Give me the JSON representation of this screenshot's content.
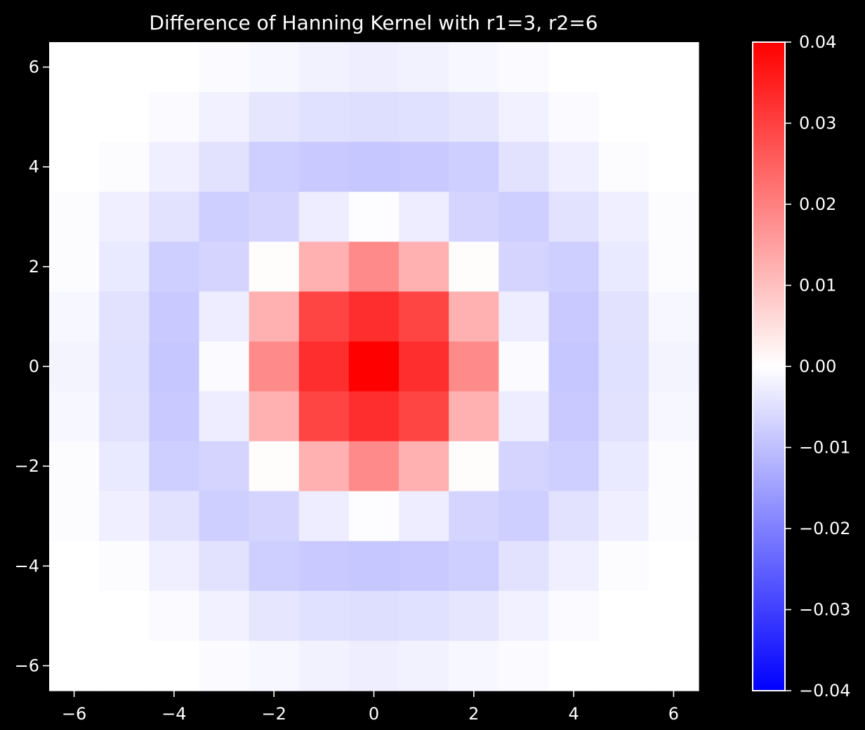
{
  "chart_data": {
    "type": "heatmap",
    "title": "Difference of Hanning Kernel with r1=3, r2=6",
    "x": [
      -6,
      -5,
      -4,
      -3,
      -2,
      -1,
      0,
      1,
      2,
      3,
      4,
      5,
      6
    ],
    "y": [
      6,
      5,
      4,
      3,
      2,
      1,
      0,
      -1,
      -2,
      -3,
      -4,
      -5,
      -6
    ],
    "values": [
      [
        0,
        0,
        0,
        -0.0007,
        -0.0012,
        -0.002,
        -0.0027,
        -0.002,
        -0.0012,
        -0.0007,
        0,
        0,
        0
      ],
      [
        0,
        0,
        -0.0007,
        -0.0022,
        -0.004,
        -0.0048,
        -0.0052,
        -0.0048,
        -0.004,
        -0.0022,
        -0.0007,
        0,
        0
      ],
      [
        0,
        -0.0005,
        -0.0025,
        -0.0045,
        -0.0075,
        -0.0085,
        -0.0088,
        -0.0085,
        -0.0075,
        -0.0045,
        -0.0025,
        -0.0005,
        0
      ],
      [
        -0.0004,
        -0.0025,
        -0.0045,
        -0.0075,
        -0.0068,
        -0.0028,
        -0.0003,
        -0.0028,
        -0.0068,
        -0.0075,
        -0.0045,
        -0.0025,
        -0.0004
      ],
      [
        -0.0005,
        -0.0035,
        -0.0075,
        -0.0068,
        0.0005,
        0.0123,
        0.0183,
        0.0123,
        0.0005,
        -0.0068,
        -0.0075,
        -0.0035,
        -0.0005
      ],
      [
        -0.0012,
        -0.0045,
        -0.0085,
        -0.0028,
        0.0123,
        0.0293,
        0.0328,
        0.0293,
        0.0123,
        -0.0028,
        -0.0085,
        -0.0045,
        -0.0012
      ],
      [
        -0.0018,
        -0.0048,
        -0.0088,
        -0.0008,
        0.0183,
        0.0328,
        0.04,
        0.0328,
        0.0183,
        -0.0008,
        -0.0088,
        -0.0048,
        -0.0018
      ],
      [
        -0.0012,
        -0.0045,
        -0.0085,
        -0.0028,
        0.0123,
        0.0293,
        0.0328,
        0.0293,
        0.0123,
        -0.0028,
        -0.0085,
        -0.0045,
        -0.0012
      ],
      [
        -0.0005,
        -0.0035,
        -0.0075,
        -0.0068,
        0.0005,
        0.0123,
        0.0183,
        0.0123,
        0.0005,
        -0.0068,
        -0.0075,
        -0.0035,
        -0.0005
      ],
      [
        -0.0004,
        -0.0025,
        -0.0045,
        -0.0075,
        -0.0068,
        -0.0028,
        -0.0003,
        -0.0028,
        -0.0068,
        -0.0075,
        -0.0045,
        -0.0025,
        -0.0004
      ],
      [
        0,
        -0.0005,
        -0.0025,
        -0.0045,
        -0.0075,
        -0.0085,
        -0.0088,
        -0.0085,
        -0.0075,
        -0.0045,
        -0.0025,
        -0.0005,
        0
      ],
      [
        0,
        0,
        -0.0007,
        -0.0022,
        -0.004,
        -0.0048,
        -0.0052,
        -0.0048,
        -0.004,
        -0.0022,
        -0.0007,
        0,
        0
      ],
      [
        0,
        0,
        0,
        -0.0007,
        -0.0012,
        -0.002,
        -0.0027,
        -0.002,
        -0.0012,
        -0.0007,
        0,
        0,
        0
      ]
    ],
    "xlim": [
      -6.5,
      6.5
    ],
    "ylim": [
      -6.5,
      6.5
    ],
    "xticks": [
      -6,
      -4,
      -2,
      0,
      2,
      4,
      6
    ],
    "yticks": [
      -6,
      -4,
      -2,
      0,
      2,
      4,
      6
    ],
    "xlabel": "",
    "ylabel": "",
    "grid": false,
    "colormap": "bwr",
    "colorbar": {
      "vmin": -0.04,
      "vmax": 0.04,
      "ticks": [
        -0.04,
        -0.03,
        -0.02,
        -0.01,
        0.0,
        0.01,
        0.02,
        0.03,
        0.04
      ],
      "tick_labels": [
        "−0.04",
        "−0.03",
        "−0.02",
        "−0.01",
        "0.00",
        "0.01",
        "0.02",
        "0.03",
        "0.04"
      ],
      "placement": "right"
    },
    "colors": {
      "background": "#000000",
      "low": "#0000ff",
      "mid": "#ffffff",
      "high": "#ff0000",
      "text": "#ffffff"
    }
  }
}
